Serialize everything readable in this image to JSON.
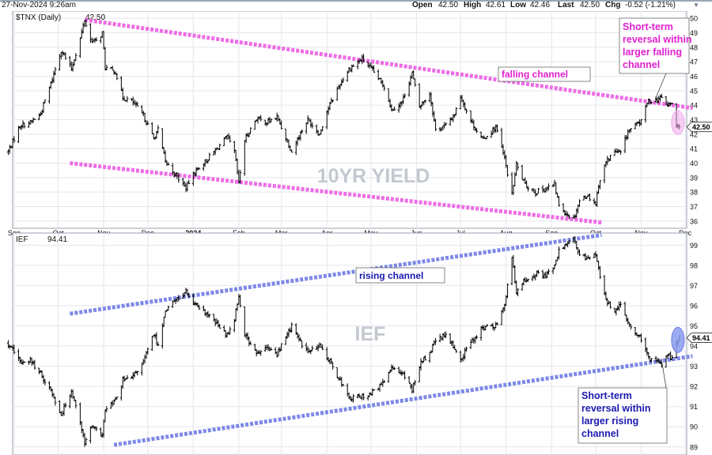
{
  "header": {
    "timestamp": "27-Nov-2024 9:26am",
    "open_label": "Open",
    "open_value": "42.50",
    "high_label": "High",
    "high_value": "42.61",
    "low_label": "Low",
    "low_value": "42.46",
    "last_label": "Last",
    "last_value": "42.50",
    "chg_label": "Chg",
    "chg_value": "-0.52 (-1.21%)",
    "chg_icon": "down-arrow-icon"
  },
  "chart_data": [
    {
      "type": "ohlc",
      "symbol_label": "$TNX (Daily)",
      "last_value": "42.50",
      "last_marker": "42.50",
      "watermark": "10YR YIELD",
      "ylim": [
        35.5,
        50.5
      ],
      "y_ticks": [
        36,
        37,
        38,
        39,
        40,
        41,
        42,
        43,
        44,
        45,
        46,
        47,
        48,
        49,
        50
      ],
      "x_tick_labels": [
        "Sep",
        "Oct",
        "Nov",
        "Dec",
        "2024",
        "Feb",
        "Mar",
        "Apr",
        "May",
        "Jun",
        "Jul",
        "Aug",
        "Sep",
        "Oct",
        "Nov",
        "Dec"
      ],
      "grid": true,
      "colors": {
        "up": "#000000",
        "down": "#000000",
        "channel": "#ee6ce6",
        "annotation": "#e020d0",
        "last_marker_bg": "#ffffff",
        "highlight": "#f0a8ec"
      },
      "annotations": {
        "channel_label": "falling channel",
        "reversal_note": [
          "Short-term",
          "reversal within",
          "larger falling",
          "channel"
        ]
      },
      "channel_lines": [
        {
          "name": "upper",
          "from": {
            "date": "2023-10-19",
            "y": 49.9
          },
          "to": {
            "date": "2024-12-06",
            "y": 43.8
          }
        },
        {
          "name": "lower",
          "from": {
            "date": "2023-10-09",
            "y": 40.0
          },
          "to": {
            "date": "2024-10-05",
            "y": 35.9
          }
        }
      ],
      "price_path": [
        [
          "2023-08-28",
          40.8
        ],
        [
          "2023-09-05",
          42.6
        ],
        [
          "2023-09-12",
          42.8
        ],
        [
          "2023-09-19",
          43.4
        ],
        [
          "2023-09-26",
          45.5
        ],
        [
          "2023-10-03",
          47.8
        ],
        [
          "2023-10-10",
          46.5
        ],
        [
          "2023-10-16",
          48.6
        ],
        [
          "2023-10-19",
          49.9
        ],
        [
          "2023-10-23",
          48.5
        ],
        [
          "2023-10-27",
          48.4
        ],
        [
          "2023-10-31",
          49.0
        ],
        [
          "2023-11-02",
          46.6
        ],
        [
          "2023-11-09",
          46.3
        ],
        [
          "2023-11-14",
          44.5
        ],
        [
          "2023-11-20",
          44.3
        ],
        [
          "2023-11-28",
          43.3
        ],
        [
          "2023-12-05",
          41.7
        ],
        [
          "2023-12-08",
          42.3
        ],
        [
          "2023-12-13",
          40.1
        ],
        [
          "2023-12-19",
          39.3
        ],
        [
          "2023-12-27",
          38.3
        ],
        [
          "2024-01-02",
          39.4
        ],
        [
          "2024-01-10",
          40.2
        ],
        [
          "2024-01-17",
          41.0
        ],
        [
          "2024-01-24",
          41.8
        ],
        [
          "2024-01-29",
          40.8
        ],
        [
          "2024-02-01",
          38.6
        ],
        [
          "2024-02-05",
          41.6
        ],
        [
          "2024-02-13",
          43.1
        ],
        [
          "2024-02-20",
          42.8
        ],
        [
          "2024-02-27",
          43.2
        ],
        [
          "2024-03-05",
          41.5
        ],
        [
          "2024-03-08",
          40.8
        ],
        [
          "2024-03-13",
          41.9
        ],
        [
          "2024-03-19",
          43.0
        ],
        [
          "2024-03-27",
          42.0
        ],
        [
          "2024-04-01",
          43.6
        ],
        [
          "2024-04-10",
          45.5
        ],
        [
          "2024-04-16",
          46.5
        ],
        [
          "2024-04-25",
          47.2
        ],
        [
          "2024-05-02",
          46.4
        ],
        [
          "2024-05-10",
          45.3
        ],
        [
          "2024-05-15",
          43.7
        ],
        [
          "2024-05-22",
          44.2
        ],
        [
          "2024-05-29",
          46.2
        ],
        [
          "2024-06-03",
          43.9
        ],
        [
          "2024-06-10",
          44.8
        ],
        [
          "2024-06-14",
          42.3
        ],
        [
          "2024-06-21",
          42.6
        ],
        [
          "2024-06-27",
          43.4
        ],
        [
          "2024-07-01",
          44.6
        ],
        [
          "2024-07-08",
          42.9
        ],
        [
          "2024-07-16",
          41.6
        ],
        [
          "2024-07-25",
          42.5
        ],
        [
          "2024-07-31",
          40.3
        ],
        [
          "2024-08-05",
          37.8
        ],
        [
          "2024-08-08",
          39.9
        ],
        [
          "2024-08-14",
          38.5
        ],
        [
          "2024-08-21",
          38.0
        ],
        [
          "2024-08-27",
          38.2
        ],
        [
          "2024-09-03",
          38.5
        ],
        [
          "2024-09-06",
          37.1
        ],
        [
          "2024-09-11",
          36.5
        ],
        [
          "2024-09-16",
          36.2
        ],
        [
          "2024-09-20",
          37.4
        ],
        [
          "2024-09-25",
          37.8
        ],
        [
          "2024-10-01",
          37.2
        ],
        [
          "2024-10-03",
          38.5
        ],
        [
          "2024-10-08",
          40.1
        ],
        [
          "2024-10-14",
          40.8
        ],
        [
          "2024-10-18",
          40.7
        ],
        [
          "2024-10-23",
          42.2
        ],
        [
          "2024-10-31",
          42.8
        ],
        [
          "2024-11-06",
          44.3
        ],
        [
          "2024-11-12",
          44.4
        ],
        [
          "2024-11-15",
          44.5
        ],
        [
          "2024-11-19",
          44.0
        ],
        [
          "2024-11-22",
          44.1
        ],
        [
          "2024-11-25",
          42.6
        ],
        [
          "2024-11-27",
          42.5
        ]
      ]
    },
    {
      "type": "ohlc",
      "symbol_label": "IEF",
      "last_value": "94.41",
      "last_marker": "94.41",
      "watermark": "IEF",
      "ylim": [
        88.6,
        99.6
      ],
      "y_ticks": [
        89,
        90,
        91,
        92,
        93,
        94,
        95,
        96,
        97,
        98,
        99
      ],
      "x_tick_labels": [
        "Sep",
        "Oct",
        "Nov",
        "Dec",
        "2024",
        "Feb",
        "Mar",
        "Apr",
        "May",
        "Jun",
        "Jul",
        "Aug",
        "Sep",
        "Oct",
        "Nov",
        "Dec"
      ],
      "grid": true,
      "colors": {
        "up": "#000000",
        "down": "#000000",
        "channel": "#7d88e8",
        "annotation": "#1a1ab0",
        "last_marker_bg": "#ffffff",
        "highlight": "#8a9cf0"
      },
      "annotations": {
        "channel_label": "rising channel",
        "reversal_note": [
          "Short-term",
          "reversal within",
          "larger rising",
          "channel"
        ]
      },
      "channel_lines": [
        {
          "name": "upper",
          "from": {
            "date": "2023-10-09",
            "y": 95.6
          },
          "to": {
            "date": "2024-10-05",
            "y": 99.5
          }
        },
        {
          "name": "lower",
          "from": {
            "date": "2023-11-08",
            "y": 89.1
          },
          "to": {
            "date": "2024-12-06",
            "y": 93.5
          }
        }
      ],
      "price_path": [
        [
          "2023-08-28",
          94.1
        ],
        [
          "2023-09-05",
          93.2
        ],
        [
          "2023-09-12",
          93.3
        ],
        [
          "2023-09-19",
          92.6
        ],
        [
          "2023-09-26",
          91.8
        ],
        [
          "2023-10-03",
          90.6
        ],
        [
          "2023-10-10",
          91.8
        ],
        [
          "2023-10-16",
          90.3
        ],
        [
          "2023-10-19",
          89.1
        ],
        [
          "2023-10-23",
          90.0
        ],
        [
          "2023-10-31",
          89.6
        ],
        [
          "2023-11-02",
          90.8
        ],
        [
          "2023-11-09",
          91.3
        ],
        [
          "2023-11-14",
          92.3
        ],
        [
          "2023-11-20",
          92.4
        ],
        [
          "2023-11-28",
          93.2
        ],
        [
          "2023-12-05",
          94.6
        ],
        [
          "2023-12-08",
          94.0
        ],
        [
          "2023-12-13",
          95.8
        ],
        [
          "2023-12-19",
          96.2
        ],
        [
          "2023-12-27",
          96.7
        ],
        [
          "2024-01-02",
          96.0
        ],
        [
          "2024-01-10",
          95.6
        ],
        [
          "2024-01-17",
          95.1
        ],
        [
          "2024-01-24",
          94.5
        ],
        [
          "2024-01-29",
          95.4
        ],
        [
          "2024-02-01",
          96.5
        ],
        [
          "2024-02-05",
          94.6
        ],
        [
          "2024-02-13",
          93.6
        ],
        [
          "2024-02-20",
          93.9
        ],
        [
          "2024-02-27",
          93.6
        ],
        [
          "2024-03-05",
          94.6
        ],
        [
          "2024-03-08",
          95.0
        ],
        [
          "2024-03-13",
          94.3
        ],
        [
          "2024-03-19",
          93.7
        ],
        [
          "2024-03-27",
          94.0
        ],
        [
          "2024-04-01",
          93.5
        ],
        [
          "2024-04-10",
          92.3
        ],
        [
          "2024-04-16",
          91.4
        ],
        [
          "2024-04-25",
          91.5
        ],
        [
          "2024-05-02",
          91.7
        ],
        [
          "2024-05-10",
          92.2
        ],
        [
          "2024-05-15",
          93.0
        ],
        [
          "2024-05-22",
          92.7
        ],
        [
          "2024-05-29",
          91.8
        ],
        [
          "2024-06-03",
          93.1
        ],
        [
          "2024-06-10",
          93.6
        ],
        [
          "2024-06-14",
          94.3
        ],
        [
          "2024-06-21",
          94.5
        ],
        [
          "2024-06-27",
          93.9
        ],
        [
          "2024-07-01",
          93.3
        ],
        [
          "2024-07-08",
          94.2
        ],
        [
          "2024-07-16",
          94.9
        ],
        [
          "2024-07-25",
          95.0
        ],
        [
          "2024-07-31",
          96.1
        ],
        [
          "2024-08-05",
          98.4
        ],
        [
          "2024-08-08",
          96.6
        ],
        [
          "2024-08-14",
          97.3
        ],
        [
          "2024-08-21",
          97.6
        ],
        [
          "2024-08-27",
          97.5
        ],
        [
          "2024-09-03",
          97.9
        ],
        [
          "2024-09-06",
          98.7
        ],
        [
          "2024-09-11",
          99.1
        ],
        [
          "2024-09-16",
          99.3
        ],
        [
          "2024-09-20",
          98.5
        ],
        [
          "2024-09-25",
          98.3
        ],
        [
          "2024-10-01",
          98.6
        ],
        [
          "2024-10-03",
          97.8
        ],
        [
          "2024-10-08",
          96.2
        ],
        [
          "2024-10-14",
          95.8
        ],
        [
          "2024-10-18",
          96.0
        ],
        [
          "2024-10-23",
          95.1
        ],
        [
          "2024-10-31",
          94.4
        ],
        [
          "2024-11-06",
          93.4
        ],
        [
          "2024-11-12",
          93.3
        ],
        [
          "2024-11-15",
          93.1
        ],
        [
          "2024-11-19",
          93.6
        ],
        [
          "2024-11-22",
          93.4
        ],
        [
          "2024-11-25",
          94.2
        ],
        [
          "2024-11-27",
          94.41
        ]
      ]
    }
  ]
}
